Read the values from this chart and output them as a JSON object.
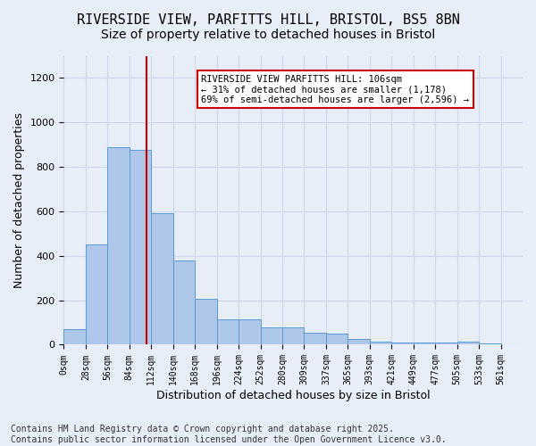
{
  "title1": "RIVERSIDE VIEW, PARFITTS HILL, BRISTOL, BS5 8BN",
  "title2": "Size of property relative to detached houses in Bristol",
  "xlabel": "Distribution of detached houses by size in Bristol",
  "ylabel": "Number of detached properties",
  "bar_values": [
    70,
    450,
    890,
    875,
    590,
    380,
    205,
    115,
    115,
    80,
    80,
    55,
    50,
    25,
    15,
    10,
    10,
    10,
    12,
    5,
    2
  ],
  "bar_labels": [
    "0sqm",
    "28sqm",
    "56sqm",
    "84sqm",
    "112sqm",
    "140sqm",
    "168sqm",
    "196sqm",
    "224sqm",
    "252sqm",
    "280sqm",
    "309sqm",
    "337sqm",
    "365sqm",
    "393sqm",
    "421sqm",
    "449sqm",
    "477sqm",
    "505sqm",
    "533sqm",
    "561sqm"
  ],
  "bar_color": "#aec6e8",
  "bar_edge_color": "#5b9bd5",
  "vline_color": "#cc0000",
  "annotation_box_text": "RIVERSIDE VIEW PARFITTS HILL: 106sqm\n← 31% of detached houses are smaller (1,178)\n69% of semi-detached houses are larger (2,596) →",
  "annotation_box_color": "#cc0000",
  "annotation_box_bg": "#ffffff",
  "ylim": [
    0,
    1300
  ],
  "yticks": [
    0,
    200,
    400,
    600,
    800,
    1000,
    1200
  ],
  "grid_color": "#d0d8e8",
  "background_color": "#e8eef8",
  "footer": "Contains HM Land Registry data © Crown copyright and database right 2025.\nContains public sector information licensed under the Open Government Licence v3.0.",
  "title_fontsize": 11,
  "subtitle_fontsize": 10,
  "axis_label_fontsize": 9,
  "tick_fontsize": 7,
  "footer_fontsize": 7
}
